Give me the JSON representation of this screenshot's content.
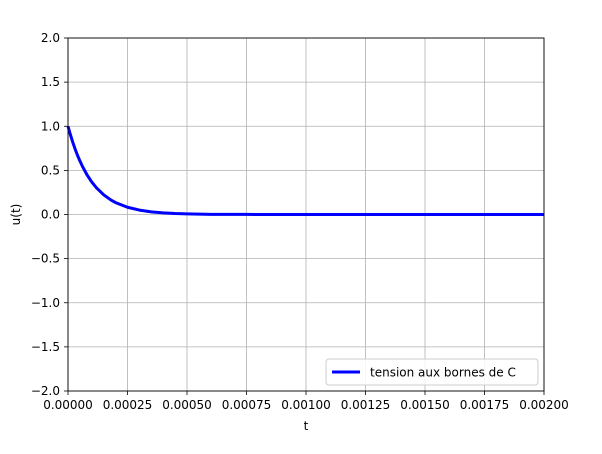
{
  "chart_data": {
    "type": "line",
    "title": "",
    "xlabel": "t",
    "ylabel": "u(t)",
    "xlim": [
      0,
      0.002
    ],
    "ylim": [
      -2.0,
      2.0
    ],
    "grid": true,
    "legend_position": "lower-right",
    "x_ticks": [
      "0.00000",
      "0.00025",
      "0.00050",
      "0.00075",
      "0.00100",
      "0.00125",
      "0.00150",
      "0.00175",
      "0.00200"
    ],
    "y_ticks": [
      "−2.0",
      "−1.5",
      "−1.0",
      "−0.5",
      "0.0",
      "0.5",
      "1.0",
      "1.5",
      "2.0"
    ],
    "series": [
      {
        "name": "tension aux bornes de C",
        "color": "#0000ff",
        "x": [
          0,
          1e-05,
          2e-05,
          3e-05,
          4e-05,
          5e-05,
          6e-05,
          8e-05,
          0.0001,
          0.00012,
          0.00015,
          0.00018,
          0.0002,
          0.00025,
          0.0003,
          0.00035,
          0.0004,
          0.00045,
          0.0005,
          0.0006,
          0.0007,
          0.00075,
          0.0008,
          0.001,
          0.00125,
          0.0015,
          0.00175,
          0.002
        ],
        "y": [
          1.0,
          0.905,
          0.819,
          0.741,
          0.67,
          0.607,
          0.549,
          0.449,
          0.368,
          0.301,
          0.223,
          0.165,
          0.135,
          0.082,
          0.05,
          0.03,
          0.018,
          0.011,
          0.007,
          0.002,
          0.001,
          0.001,
          0.0,
          0.0,
          0.0,
          0.0,
          0.0,
          0.0
        ]
      }
    ]
  }
}
